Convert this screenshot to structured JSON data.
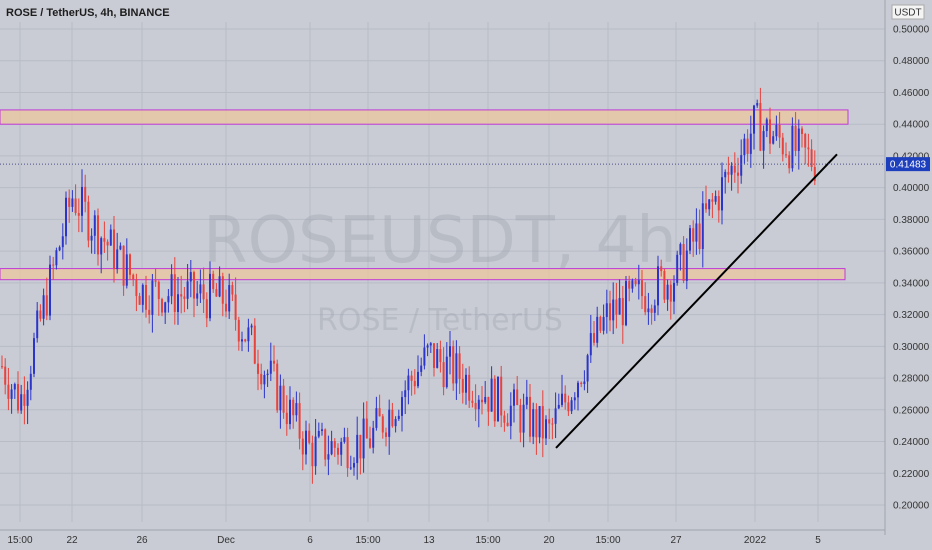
{
  "header": {
    "title": "ROSE / TetherUS, 4h, BINANCE",
    "currency": "USDT"
  },
  "watermark": {
    "symbol": "ROSEUSDT, 4h",
    "name": "ROSE / TetherUS"
  },
  "colors": {
    "up": "#2b35c9",
    "down": "#e8423c",
    "zone_fill": "#e7c7a3",
    "zone_border": "#c23ad6",
    "trendline": "#000000",
    "price_tag": "#1e3fbd"
  },
  "chart_data": {
    "type": "candlestick",
    "title": "ROSE / TetherUS, 4h, BINANCE",
    "y_unit": "USDT",
    "ylim": [
      0.195,
      0.51
    ],
    "y_ticks": [
      "0.20000",
      "0.22000",
      "0.24000",
      "0.26000",
      "0.28000",
      "0.30000",
      "0.32000",
      "0.34000",
      "0.36000",
      "0.38000",
      "0.40000",
      "0.42000",
      "0.44000",
      "0.46000",
      "0.48000",
      "0.50000"
    ],
    "x_ticks": [
      "15:00",
      "22",
      "26",
      "Dec",
      "6",
      "15:00",
      "13",
      "15:00",
      "20",
      "15:00",
      "27",
      "2022",
      "5"
    ],
    "last_price": "0.41483",
    "series": [
      {
        "x": "15:00",
        "close": 0.265
      },
      {
        "x": "22",
        "close": 0.395
      },
      {
        "x": "26",
        "close": 0.335
      },
      {
        "x": "Dec",
        "close": 0.33
      },
      {
        "x": "6",
        "close": 0.235
      },
      {
        "x": "15:00",
        "close": 0.24
      },
      {
        "x": "13",
        "close": 0.295
      },
      {
        "x": "15:00",
        "close": 0.27
      },
      {
        "x": "20",
        "close": 0.245
      },
      {
        "x": "15:00",
        "close": 0.32
      },
      {
        "x": "27",
        "close": 0.345
      },
      {
        "x": "2022",
        "close": 0.44
      },
      {
        "x": "5",
        "close": 0.415
      }
    ],
    "zones": [
      {
        "low": 0.44,
        "high": 0.449
      },
      {
        "low": 0.342,
        "high": 0.349
      }
    ],
    "trendline": {
      "from": {
        "x": "20",
        "y": 0.236
      },
      "to": {
        "x": "5",
        "y": 0.421
      }
    }
  }
}
